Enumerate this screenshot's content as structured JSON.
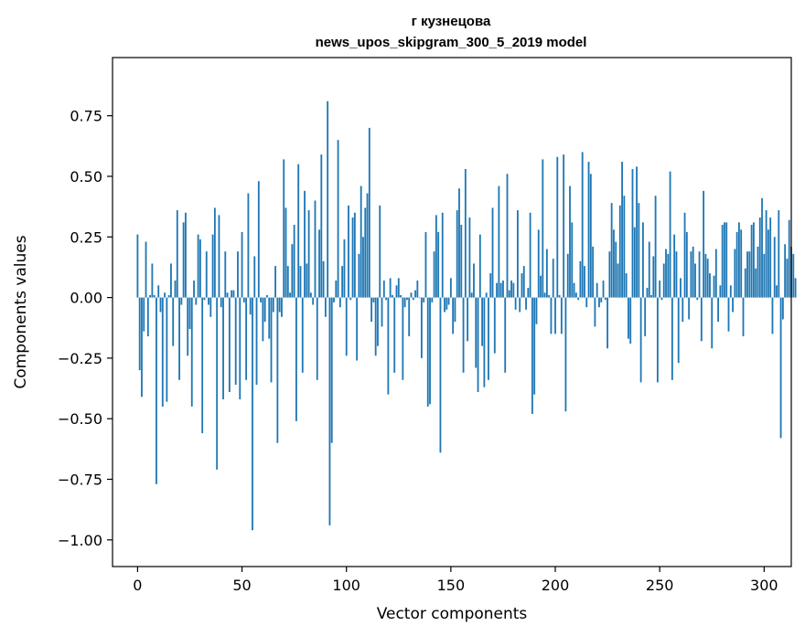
{
  "chart_data": {
    "type": "bar",
    "title": "г кузнецова",
    "subtitle": "news_upos_skipgram_300_5_2019 model",
    "xlabel": "Vector components",
    "ylabel": "Components values",
    "xlim": [
      -12,
      313
    ],
    "ylim": [
      -1.11,
      0.99
    ],
    "x_ticks": [
      0,
      50,
      100,
      150,
      200,
      250,
      300
    ],
    "x_tick_labels": [
      "0",
      "50",
      "100",
      "150",
      "200",
      "250",
      "300"
    ],
    "y_ticks": [
      -1.0,
      -0.75,
      -0.5,
      -0.25,
      0.0,
      0.25,
      0.5,
      0.75
    ],
    "y_tick_labels": [
      "−1.00",
      "−0.75",
      "−0.50",
      "−0.25",
      "0.00",
      "0.25",
      "0.50",
      "0.75"
    ],
    "bar_color": "#1f77b4",
    "grid": false,
    "series": [
      {
        "values": [
          0.26,
          -0.3,
          -0.41,
          -0.14,
          0.23,
          -0.16,
          0.01,
          0.14,
          0.01,
          -0.77,
          0.05,
          -0.06,
          -0.45,
          0.02,
          -0.43,
          0.01,
          0.14,
          -0.2,
          0.07,
          0.36,
          -0.34,
          -0.03,
          0.31,
          0.35,
          -0.24,
          -0.13,
          -0.45,
          0.07,
          -0.03,
          0.26,
          0.24,
          -0.56,
          -0.01,
          0.19,
          -0.03,
          -0.08,
          0.26,
          0.37,
          -0.71,
          0.34,
          -0.04,
          -0.42,
          0.19,
          0.02,
          -0.39,
          0.03,
          0.03,
          -0.36,
          0.19,
          -0.42,
          0.27,
          -0.02,
          -0.34,
          0.43,
          -0.07,
          -0.96,
          0.17,
          -0.36,
          0.48,
          -0.02,
          -0.18,
          -0.1,
          0.01,
          -0.17,
          -0.35,
          -0.06,
          0.13,
          -0.6,
          -0.06,
          -0.08,
          0.57,
          0.37,
          0.13,
          0.02,
          0.22,
          0.3,
          -0.51,
          0.55,
          0.13,
          -0.31,
          0.44,
          0.14,
          0.36,
          0.02,
          -0.03,
          0.4,
          -0.34,
          0.28,
          0.59,
          0.15,
          -0.08,
          0.81,
          -0.94,
          -0.6,
          -0.02,
          0.07,
          0.65,
          -0.04,
          0.13,
          0.24,
          -0.24,
          0.38,
          -0.01,
          0.33,
          0.35,
          -0.26,
          0.18,
          0.46,
          0.25,
          0.37,
          0.43,
          0.7,
          -0.1,
          -0.02,
          -0.24,
          -0.2,
          0.38,
          -0.12,
          0.07,
          -0.01,
          -0.4,
          0.08,
          0.01,
          -0.31,
          0.05,
          0.08,
          0.01,
          -0.34,
          -0.04,
          -0.01,
          -0.16,
          0.02,
          -0.01,
          0.03,
          0.07,
          0.0,
          -0.25,
          -0.02,
          0.27,
          -0.45,
          -0.44,
          -0.02,
          0.19,
          0.34,
          0.27,
          -0.64,
          0.35,
          -0.06,
          -0.05,
          -0.03,
          0.08,
          -0.15,
          -0.1,
          0.36,
          0.45,
          0.3,
          -0.31,
          0.53,
          -0.18,
          0.33,
          0.02,
          0.14,
          -0.29,
          -0.39,
          0.26,
          -0.2,
          -0.37,
          0.02,
          -0.34,
          0.1,
          0.37,
          -0.23,
          0.06,
          0.46,
          0.06,
          0.07,
          -0.31,
          0.51,
          0.03,
          0.07,
          0.06,
          -0.05,
          0.36,
          -0.06,
          0.1,
          0.13,
          -0.05,
          0.04,
          0.35,
          -0.48,
          -0.4,
          -0.11,
          0.28,
          0.09,
          0.57,
          0.02,
          0.2,
          0.01,
          -0.15,
          0.16,
          -0.15,
          0.58,
          0.01,
          -0.15,
          0.59,
          -0.47,
          0.18,
          0.46,
          0.31,
          0.06,
          0.02,
          -0.01,
          0.15,
          0.6,
          0.13,
          -0.04,
          0.56,
          0.51,
          0.21,
          -0.12,
          0.06,
          -0.04,
          -0.02,
          0.07,
          -0.01,
          -0.21,
          0.19,
          0.39,
          0.28,
          0.23,
          0.14,
          0.38,
          0.56,
          0.42,
          0.1,
          -0.17,
          -0.19,
          0.53,
          0.29,
          0.54,
          0.39,
          -0.35,
          0.31,
          -0.16,
          0.04,
          0.23,
          0.01,
          0.17,
          0.42,
          -0.35,
          0.07,
          -0.01,
          0.14,
          0.2,
          0.18,
          0.52,
          -0.34,
          0.26,
          0.19,
          -0.27,
          0.08,
          -0.1,
          0.35,
          0.27,
          -0.09,
          0.19,
          0.21,
          0.14,
          -0.01,
          0.19,
          -0.18,
          0.44,
          0.18,
          0.16,
          0.1,
          -0.21,
          0.09,
          0.2,
          -0.1,
          0.05,
          0.3,
          0.31,
          0.31,
          -0.14,
          0.05,
          -0.06,
          0.2,
          0.27,
          0.31,
          0.28,
          -0.16,
          0.12,
          0.19,
          0.19,
          0.3,
          0.31,
          0.12,
          0.21,
          0.33,
          0.41,
          0.18,
          0.36,
          0.28,
          0.33,
          -0.15,
          0.25,
          0.05,
          0.36,
          -0.58,
          -0.09,
          0.22,
          0.16,
          0.32,
          0.21,
          0.18,
          0.08
        ]
      }
    ]
  }
}
